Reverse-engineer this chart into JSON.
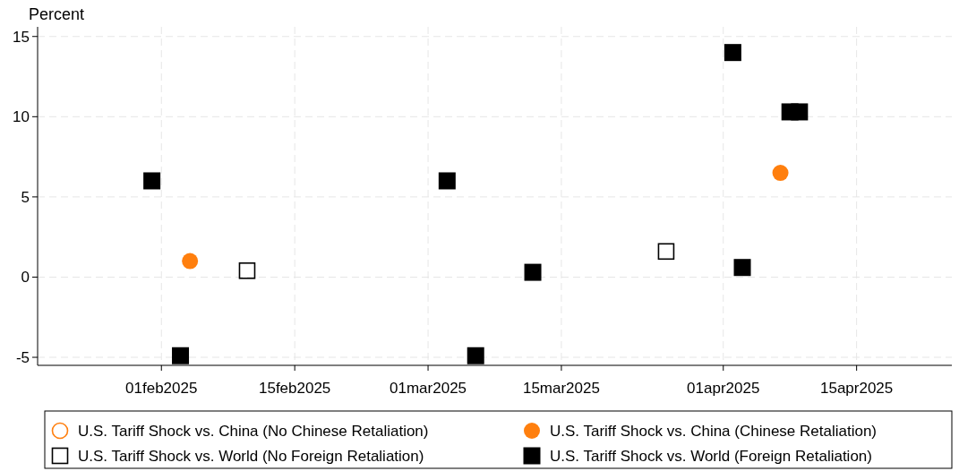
{
  "chart_data": {
    "type": "scatter",
    "ylabel": "Percent",
    "xlim": [
      "2025-01-19",
      "2025-04-25"
    ],
    "ylim": [
      -5.5,
      15.6
    ],
    "xticks": [
      {
        "value": "2025-02-01",
        "label": "01feb2025"
      },
      {
        "value": "2025-02-15",
        "label": "15feb2025"
      },
      {
        "value": "2025-03-01",
        "label": "01mar2025"
      },
      {
        "value": "2025-03-15",
        "label": "15mar2025"
      },
      {
        "value": "2025-04-01",
        "label": "01apr2025"
      },
      {
        "value": "2025-04-15",
        "label": "15apr2025"
      }
    ],
    "yticks": [
      -5,
      0,
      5,
      10,
      15
    ],
    "grid": true,
    "legend": "bottom",
    "series": [
      {
        "name": "U.S. Tariff Shock vs. China (No Chinese Retaliation)",
        "color": "#ff7f0e",
        "marker": "circle-open"
      },
      {
        "name": "U.S. Tariff Shock vs. China (Chinese Retaliation)",
        "color": "#ff7f0e",
        "marker": "circle",
        "x": [
          "2025-02-04",
          "2025-04-07"
        ],
        "values": [
          1.0,
          6.5
        ]
      },
      {
        "name": "U.S. Tariff Shock vs. World (No Foreign Retaliation)",
        "color": "#000000",
        "marker": "square-open",
        "x": [
          "2025-02-10",
          "2025-03-26"
        ],
        "values": [
          0.4,
          1.6
        ]
      },
      {
        "name": "U.S. Tariff Shock vs. World (Foreign Retaliation)",
        "color": "#000000",
        "marker": "square",
        "x": [
          "2025-01-31",
          "2025-02-03",
          "2025-03-03",
          "2025-03-06",
          "2025-03-12",
          "2025-04-02",
          "2025-04-03",
          "2025-04-08",
          "2025-04-09"
        ],
        "values": [
          6.0,
          -4.9,
          6.0,
          -4.9,
          0.3,
          14.0,
          0.6,
          10.3,
          10.3
        ]
      }
    ]
  }
}
